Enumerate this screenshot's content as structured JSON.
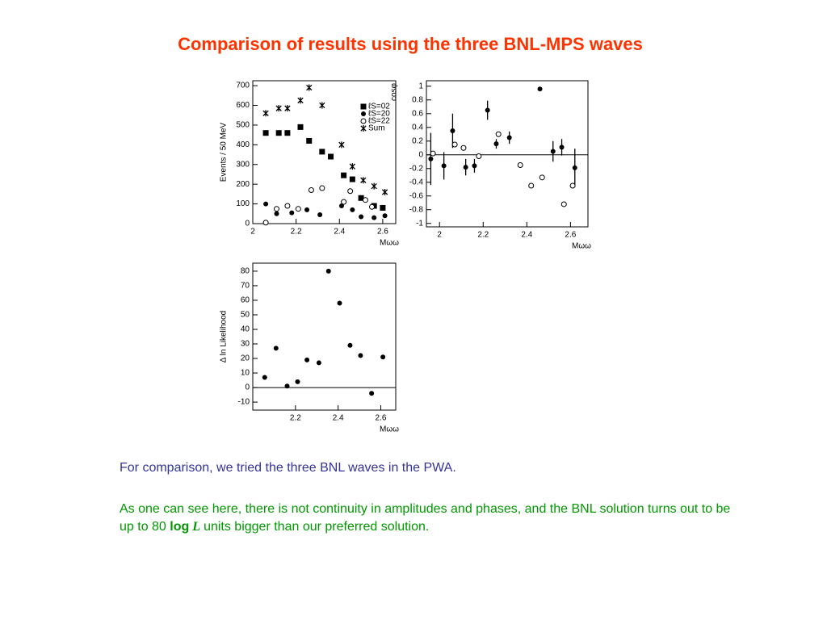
{
  "title": "Comparison of results using the three BNL-MPS waves",
  "paragraph1": "For comparison, we tried the three BNL waves in the PWA.",
  "paragraph2": {
    "before": "As one can see here, there is not continuity in amplitudes and phases, and the BNL solution turns out to be up to 80 ",
    "bold": "log",
    "symbol": "L",
    "after": "units bigger than our preferred solution."
  },
  "chart_data": [
    {
      "type": "scatter",
      "ylabel": "Events / 50 MeV",
      "xlabel": "Mωω",
      "xlim": [
        2,
        2.66
      ],
      "xticks": [
        2,
        2.2,
        2.4,
        2.6
      ],
      "ylim": [
        0,
        725
      ],
      "yticks": [
        0,
        100,
        200,
        300,
        400,
        500,
        600,
        700
      ],
      "legend": "top-right",
      "series": [
        {
          "name": "ℓS=02",
          "marker": "square",
          "color": "#000000",
          "x": [
            2.06,
            2.12,
            2.16,
            2.22,
            2.26,
            2.32,
            2.36,
            2.42,
            2.46,
            2.5,
            2.56,
            2.6
          ],
          "values": [
            460,
            460,
            460,
            490,
            420,
            365,
            340,
            245,
            225,
            130,
            90,
            80
          ]
        },
        {
          "name": "ℓS=20",
          "marker": "circle",
          "color": "#000000",
          "x": [
            2.06,
            2.11,
            2.18,
            2.25,
            2.31,
            2.41,
            2.46,
            2.5,
            2.56,
            2.61
          ],
          "values": [
            100,
            50,
            55,
            70,
            45,
            90,
            70,
            35,
            30,
            40
          ]
        },
        {
          "name": "ℓS=22",
          "marker": "open-circle",
          "color": "#000000",
          "x": [
            2.06,
            2.11,
            2.16,
            2.21,
            2.27,
            2.32,
            2.42,
            2.45,
            2.52,
            2.55
          ],
          "values": [
            5,
            75,
            90,
            75,
            170,
            180,
            110,
            165,
            120,
            85
          ]
        },
        {
          "name": "Sum",
          "marker": "star",
          "color": "#000000",
          "x": [
            2.06,
            2.12,
            2.16,
            2.22,
            2.26,
            2.32,
            2.41,
            2.46,
            2.51,
            2.56,
            2.61
          ],
          "values": [
            560,
            585,
            585,
            625,
            690,
            600,
            400,
            290,
            220,
            190,
            160
          ]
        }
      ]
    },
    {
      "type": "scatter",
      "ylabel": "cosφ",
      "xlabel": "Mωω",
      "xlim": [
        1.94,
        2.68
      ],
      "xticks": [
        2,
        2.2,
        2.4,
        2.6
      ],
      "ylim": [
        -1.05,
        1.08
      ],
      "yticks": [
        -1,
        -0.8,
        -0.6,
        -0.4,
        -0.2,
        0,
        0.2,
        0.4,
        0.6,
        0.8,
        1
      ],
      "series": [
        {
          "marker": "circle",
          "color": "#000000",
          "x": [
            1.96,
            2.02,
            2.06,
            2.12,
            2.16,
            2.22,
            2.26,
            2.32,
            2.46,
            2.52,
            2.56,
            2.62
          ],
          "values": [
            -0.06,
            -0.16,
            0.35,
            -0.18,
            -0.16,
            0.65,
            0.16,
            0.25,
            0.96,
            0.05,
            0.11,
            -0.19
          ],
          "errors": [
            0.38,
            0.2,
            0.25,
            0.12,
            0.1,
            0.14,
            0.07,
            0.09,
            0,
            0.15,
            0.12,
            0.28
          ]
        },
        {
          "marker": "open-circle",
          "color": "#000000",
          "x": [
            1.97,
            2.07,
            2.11,
            2.18,
            2.27,
            2.37,
            2.42,
            2.47,
            2.57,
            2.61
          ],
          "values": [
            0.02,
            0.15,
            0.1,
            -0.02,
            0.3,
            -0.15,
            -0.45,
            -0.33,
            -0.72,
            -0.45
          ]
        }
      ]
    },
    {
      "type": "scatter",
      "ylabel": "Δ ln Likelihood",
      "xlabel": "Mωω",
      "xlim": [
        2,
        2.67
      ],
      "xticks": [
        2.2,
        2.4,
        2.6
      ],
      "ylim": [
        -15.5,
        85.5
      ],
      "yticks": [
        -10,
        0,
        10,
        20,
        30,
        40,
        50,
        60,
        70,
        80
      ],
      "series": [
        {
          "marker": "circle",
          "color": "#000000",
          "x": [
            2.056,
            2.109,
            2.161,
            2.21,
            2.254,
            2.31,
            2.355,
            2.407,
            2.456,
            2.505,
            2.557,
            2.61
          ],
          "values": [
            7,
            27,
            1,
            4,
            19,
            17,
            80,
            58,
            29,
            22,
            -4,
            21
          ]
        }
      ]
    }
  ]
}
